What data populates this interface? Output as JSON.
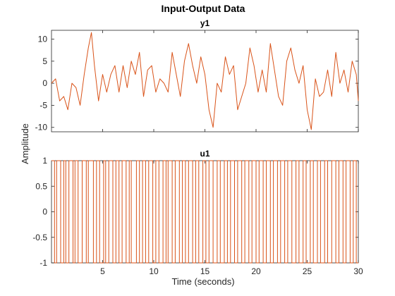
{
  "figure": {
    "title": "Input-Output Data",
    "xlabel": "Time (seconds)",
    "ylabel": "Amplitude"
  },
  "chart_data": [
    {
      "type": "line",
      "title": "y1",
      "xlabel": "Time (seconds)",
      "ylabel": "Amplitude",
      "xlim": [
        0,
        30
      ],
      "ylim": [
        -11,
        12
      ],
      "xticks": [
        5,
        10,
        15,
        20,
        25,
        30
      ],
      "yticks": [
        10,
        5,
        0,
        -5,
        -10
      ],
      "color": "#D95319",
      "grid": false,
      "series": [
        {
          "x": [
            0,
            0.4,
            0.8,
            1.2,
            1.6,
            2,
            2.4,
            2.8,
            3.2,
            3.6,
            3.9,
            4.2,
            4.6,
            5,
            5.4,
            5.8,
            6.2,
            6.6,
            7,
            7.4,
            7.8,
            8.2,
            8.6,
            9,
            9.4,
            9.8,
            10.2,
            10.6,
            11,
            11.4,
            11.8,
            12.2,
            12.6,
            13,
            13.4,
            13.8,
            14.2,
            14.6,
            15,
            15.4,
            15.8,
            16.2,
            16.6,
            17,
            17.4,
            17.8,
            18.2,
            18.6,
            19,
            19.4,
            19.8,
            20.2,
            20.6,
            21,
            21.4,
            21.8,
            22.2,
            22.6,
            23,
            23.4,
            23.8,
            24.2,
            24.6,
            25,
            25.4,
            25.8,
            26.2,
            26.6,
            27,
            27.4,
            27.8,
            28.2,
            28.6,
            29,
            29.4,
            29.8,
            30
          ],
          "y": [
            0,
            1,
            -4,
            -3,
            -6,
            0,
            -1,
            -5,
            2,
            8,
            11.5,
            4,
            -4,
            2,
            -2,
            2,
            4,
            -2,
            4,
            -1,
            5,
            2,
            7,
            -3,
            3,
            4,
            -2,
            1,
            0,
            -2,
            7,
            2,
            -3,
            5,
            9,
            4,
            0,
            6,
            2,
            -6,
            -10,
            0,
            -2,
            6,
            2,
            4,
            -6,
            -3,
            0,
            8,
            4,
            -2,
            3,
            -2,
            9,
            3,
            -3,
            -5,
            5,
            8,
            3,
            0,
            4,
            -6,
            -10.5,
            1,
            -3,
            -2,
            3,
            -3,
            7,
            0,
            3,
            -2,
            5,
            2,
            -4
          ]
        }
      ]
    },
    {
      "type": "line",
      "title": "u1",
      "xlabel": "Time (seconds)",
      "ylabel": "Amplitude",
      "xlim": [
        0,
        30
      ],
      "ylim": [
        -1,
        1
      ],
      "xticks": [
        5,
        10,
        15,
        20,
        25,
        30
      ],
      "yticks": [
        1,
        0.5,
        0,
        -0.5,
        -1
      ],
      "color": "#D95319",
      "grid": false,
      "step": true,
      "series": [
        {
          "x": [
            0,
            0.3,
            0.5,
            0.9,
            1.2,
            1.4,
            1.7,
            2.1,
            2.3,
            2.6,
            3.0,
            3.4,
            3.6,
            4.1,
            4.4,
            4.7,
            5.1,
            5.3,
            5.6,
            6.0,
            6.3,
            6.6,
            6.9,
            7.3,
            7.6,
            7.8,
            8.3,
            8.6,
            8.9,
            9.2,
            9.5,
            9.9,
            10.2,
            10.5,
            10.9,
            11.2,
            11.4,
            11.8,
            12.1,
            12.5,
            12.8,
            13.1,
            13.4,
            13.8,
            14.1,
            14.4,
            14.8,
            15.1,
            15.4,
            15.8,
            16.2,
            16.5,
            16.9,
            17.2,
            17.5,
            17.9,
            18.2,
            18.6,
            18.9,
            19.3,
            19.6,
            20.0,
            20.3,
            20.7,
            21.0,
            21.4,
            21.7,
            22.1,
            22.4,
            22.8,
            23.1,
            23.5,
            23.9,
            24.2,
            24.6,
            24.9,
            25.3,
            25.6,
            26.0,
            26.3,
            26.7,
            27.0,
            27.4,
            27.8,
            28.1,
            28.5,
            28.8,
            29.2,
            29.5,
            29.8
          ],
          "values": [
            1,
            -1,
            1,
            -1,
            1,
            -1,
            1,
            -1,
            1,
            -1,
            1,
            -1,
            1,
            -1,
            1,
            -1,
            1,
            -1,
            1,
            -1,
            1,
            -1,
            1,
            -1,
            1,
            -1,
            1,
            -1,
            1,
            -1,
            1,
            -1,
            1,
            -1,
            1,
            -1,
            1,
            -1,
            1,
            -1,
            1,
            -1,
            1,
            -1,
            1,
            -1,
            1,
            -1,
            1,
            -1,
            1,
            -1,
            1,
            -1,
            1,
            -1,
            1,
            -1,
            1,
            -1,
            1,
            -1,
            1,
            -1,
            1,
            -1,
            1,
            -1,
            1,
            -1,
            1,
            -1,
            1,
            -1,
            1,
            -1,
            1,
            -1,
            1,
            -1,
            1,
            -1,
            1,
            -1,
            1,
            -1,
            1,
            -1,
            1,
            -1
          ]
        }
      ]
    }
  ]
}
